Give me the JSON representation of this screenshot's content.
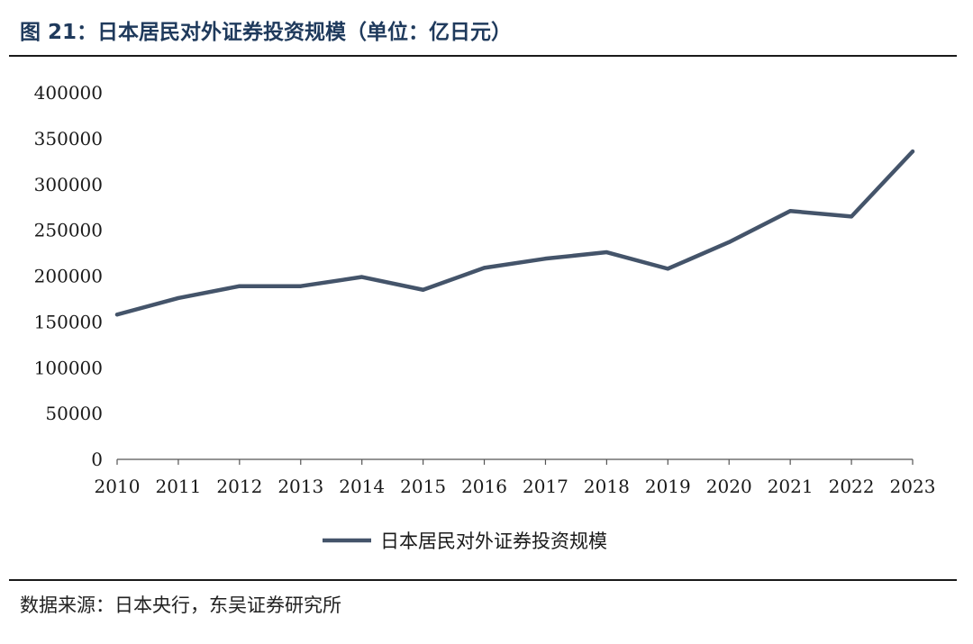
{
  "figure": {
    "title": "图 21：日本居民对外证券投资规模（单位：亿日元）",
    "source": "数据来源：日本央行，东吴证券研究所"
  },
  "colors": {
    "line": "#44546a",
    "title": "#1f3a5c",
    "axis": "#555555"
  },
  "chart_data": {
    "type": "line",
    "x": [
      "2010",
      "2011",
      "2012",
      "2013",
      "2014",
      "2015",
      "2016",
      "2017",
      "2018",
      "2019",
      "2020",
      "2021",
      "2022",
      "2023"
    ],
    "series": [
      {
        "name": "日本居民对外证券投资规模",
        "values": [
          158000,
          176000,
          189000,
          189000,
          199000,
          185000,
          209000,
          219000,
          226000,
          208000,
          237000,
          271000,
          265000,
          336000
        ]
      }
    ],
    "ylim": [
      0,
      400000
    ],
    "yticks": [
      "0",
      "50000",
      "100000",
      "150000",
      "200000",
      "250000",
      "300000",
      "350000",
      "400000"
    ],
    "grid": false,
    "legend_position": "bottom"
  }
}
